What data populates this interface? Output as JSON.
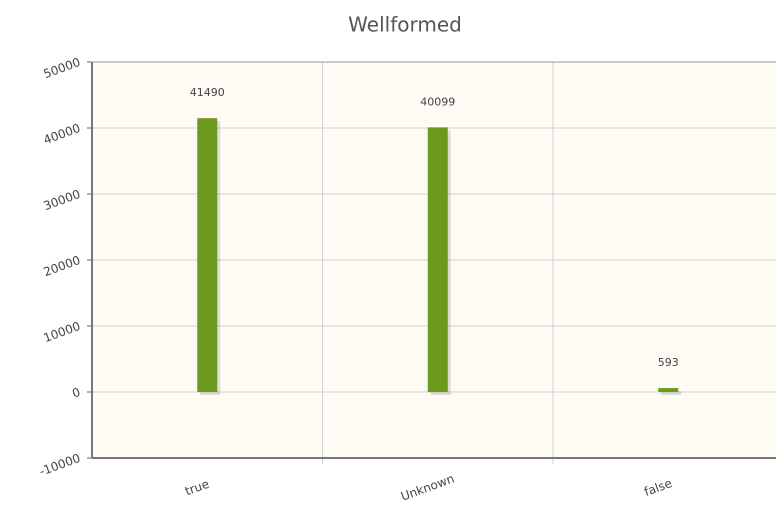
{
  "chart_data": {
    "type": "bar",
    "title": "Wellformed",
    "categories": [
      "true",
      "Unknown",
      "false"
    ],
    "values": [
      41490,
      40099,
      593
    ],
    "color": "#6b9a1f",
    "ylim": [
      -10000,
      50000
    ],
    "yticks": [
      -10000,
      0,
      10000,
      20000,
      30000,
      40000,
      50000
    ],
    "grid": true
  }
}
